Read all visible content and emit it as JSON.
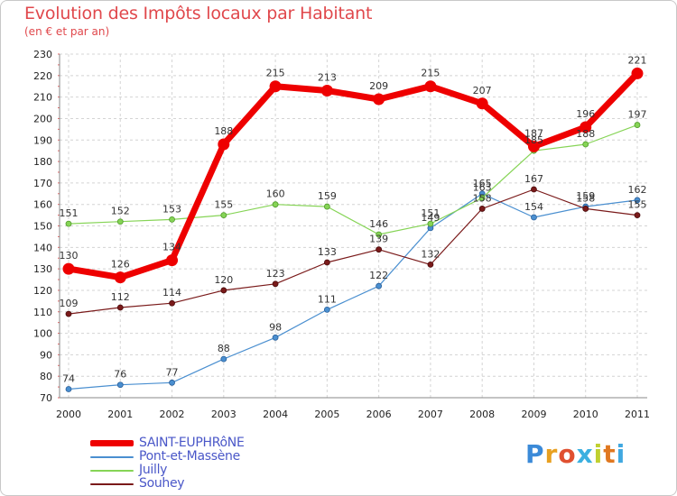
{
  "title": "Evolution des Impôts locaux par Habitant",
  "subtitle": "(en € et par an)",
  "logo": "Proxiti",
  "chart_data": {
    "type": "line",
    "title": "Evolution des Impôts locaux par Habitant",
    "subtitle": "(en € et par an)",
    "xlabel": "",
    "ylabel": "",
    "x": [
      "2000",
      "2001",
      "2002",
      "2003",
      "2004",
      "2005",
      "2006",
      "2007",
      "2008",
      "2009",
      "2010",
      "2011"
    ],
    "ylim": [
      70,
      230
    ],
    "yticks": [
      70,
      80,
      90,
      100,
      110,
      120,
      130,
      140,
      150,
      160,
      170,
      180,
      190,
      200,
      210,
      220,
      230
    ],
    "grid": true,
    "legend_position": "bottom-left",
    "series": [
      {
        "name": "SAINT-EUPHRôNE",
        "color": "#ee0000",
        "values": [
          130,
          126,
          134,
          188,
          215,
          213,
          209,
          215,
          207,
          187,
          196,
          221
        ]
      },
      {
        "name": "Pont-et-Massène",
        "color": "#4a8fd0",
        "values": [
          74,
          76,
          77,
          88,
          98,
          111,
          122,
          149,
          165,
          154,
          159,
          162
        ]
      },
      {
        "name": "Juilly",
        "color": "#86d456",
        "values": [
          151,
          152,
          153,
          155,
          160,
          159,
          146,
          151,
          163,
          185,
          188,
          197
        ]
      },
      {
        "name": "Souhey",
        "color": "#7a1a1a",
        "values": [
          109,
          112,
          114,
          120,
          123,
          133,
          139,
          132,
          158,
          167,
          158,
          155
        ]
      }
    ]
  }
}
